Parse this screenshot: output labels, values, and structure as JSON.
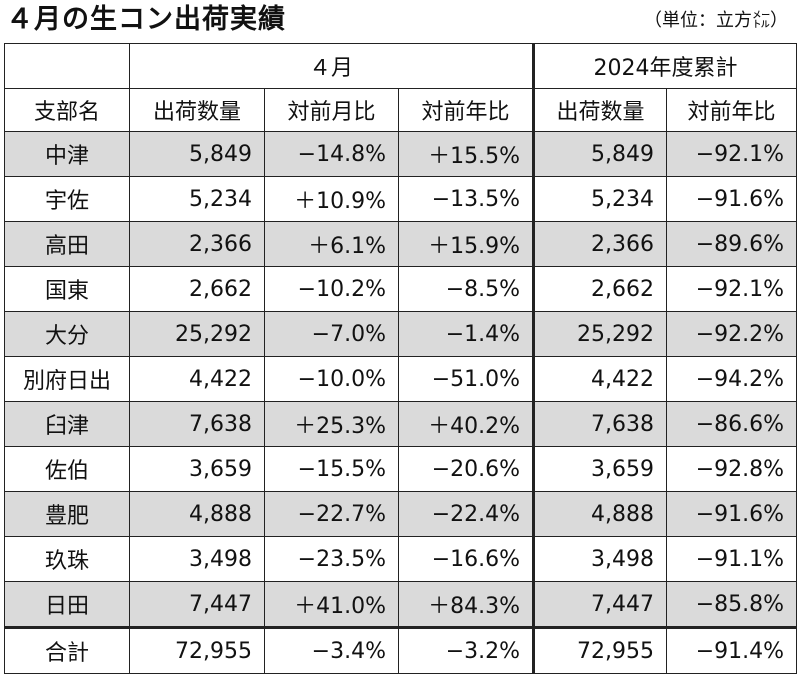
{
  "title": "４月の生コン出荷実績",
  "unit": "（単位：立方㍍）",
  "header": {
    "april_label": "４月",
    "ytd_label": "2024年度累計",
    "col_branch": "支部名",
    "col_april_volume": "出荷数量",
    "col_april_mom": "対前月比",
    "col_april_yoy": "対前年比",
    "col_ytd_volume": "出荷数量",
    "col_ytd_yoy": "対前年比"
  },
  "rows": [
    {
      "name": "中津",
      "volume": "5,849",
      "mom": "−14.8%",
      "yoy": "＋15.5%",
      "ytd_volume": "5,849",
      "ytd_yoy": "−92.1%"
    },
    {
      "name": "宇佐",
      "volume": "5,234",
      "mom": "＋10.9%",
      "yoy": "−13.5%",
      "ytd_volume": "5,234",
      "ytd_yoy": "−91.6%"
    },
    {
      "name": "高田",
      "volume": "2,366",
      "mom": "＋6.1%",
      "yoy": "＋15.9%",
      "ytd_volume": "2,366",
      "ytd_yoy": "−89.6%"
    },
    {
      "name": "国東",
      "volume": "2,662",
      "mom": "−10.2%",
      "yoy": "−8.5%",
      "ytd_volume": "2,662",
      "ytd_yoy": "−92.1%"
    },
    {
      "name": "大分",
      "volume": "25,292",
      "mom": "−7.0%",
      "yoy": "−1.4%",
      "ytd_volume": "25,292",
      "ytd_yoy": "−92.2%"
    },
    {
      "name": "別府日出",
      "volume": "4,422",
      "mom": "−10.0%",
      "yoy": "−51.0%",
      "ytd_volume": "4,422",
      "ytd_yoy": "−94.2%"
    },
    {
      "name": "臼津",
      "volume": "7,638",
      "mom": "＋25.3%",
      "yoy": "＋40.2%",
      "ytd_volume": "7,638",
      "ytd_yoy": "−86.6%"
    },
    {
      "name": "佐伯",
      "volume": "3,659",
      "mom": "−15.5%",
      "yoy": "−20.6%",
      "ytd_volume": "3,659",
      "ytd_yoy": "−92.8%"
    },
    {
      "name": "豊肥",
      "volume": "4,888",
      "mom": "−22.7%",
      "yoy": "−22.4%",
      "ytd_volume": "4,888",
      "ytd_yoy": "−91.6%"
    },
    {
      "name": "玖珠",
      "volume": "3,498",
      "mom": "−23.5%",
      "yoy": "−16.6%",
      "ytd_volume": "3,498",
      "ytd_yoy": "−91.1%"
    },
    {
      "name": "日田",
      "volume": "7,447",
      "mom": "＋41.0%",
      "yoy": "＋84.3%",
      "ytd_volume": "7,447",
      "ytd_yoy": "−85.8%"
    }
  ],
  "total": {
    "name": "合計",
    "volume": "72,955",
    "mom": "−3.4%",
    "yoy": "−3.2%",
    "ytd_volume": "72,955",
    "ytd_yoy": "−91.4%"
  },
  "colors": {
    "shade": "#dadada",
    "border": "#222222"
  }
}
